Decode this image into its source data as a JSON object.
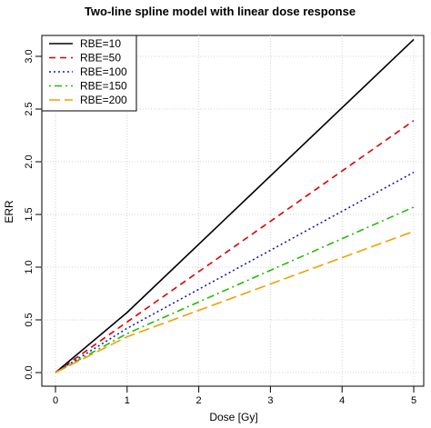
{
  "chart_data": {
    "type": "line",
    "title": "Two-line spline model with linear dose response",
    "xlabel": "Dose [Gy]",
    "ylabel": "ERR",
    "xlim": [
      0,
      5
    ],
    "ylim": [
      0,
      3.0
    ],
    "xticks": [
      "0",
      "1",
      "2",
      "3",
      "4",
      "5"
    ],
    "yticks": [
      "0.0",
      "0.5",
      "1.0",
      "1.5",
      "2.0",
      "2.5",
      "3.0"
    ],
    "grid": true,
    "legend_position": "top-left",
    "series": [
      {
        "name": "RBE=10",
        "color": "#000000",
        "dash": "solid",
        "x": [
          0,
          1,
          5
        ],
        "y": [
          0,
          0.57,
          3.16
        ]
      },
      {
        "name": "RBE=50",
        "color": "#dd0000",
        "dash": "dashed",
        "x": [
          0,
          1,
          5
        ],
        "y": [
          0,
          0.48,
          2.39
        ]
      },
      {
        "name": "RBE=100",
        "color": "#1a1aaa",
        "dash": "dotted",
        "x": [
          0,
          1,
          5
        ],
        "y": [
          0,
          0.42,
          1.9
        ]
      },
      {
        "name": "RBE=150",
        "color": "#22bb00",
        "dash": "dotdash",
        "x": [
          0,
          1,
          5
        ],
        "y": [
          0,
          0.37,
          1.57
        ]
      },
      {
        "name": "RBE=200",
        "color": "#f0a000",
        "dash": "longdash",
        "x": [
          0,
          1,
          5
        ],
        "y": [
          0,
          0.34,
          1.34
        ]
      }
    ]
  }
}
